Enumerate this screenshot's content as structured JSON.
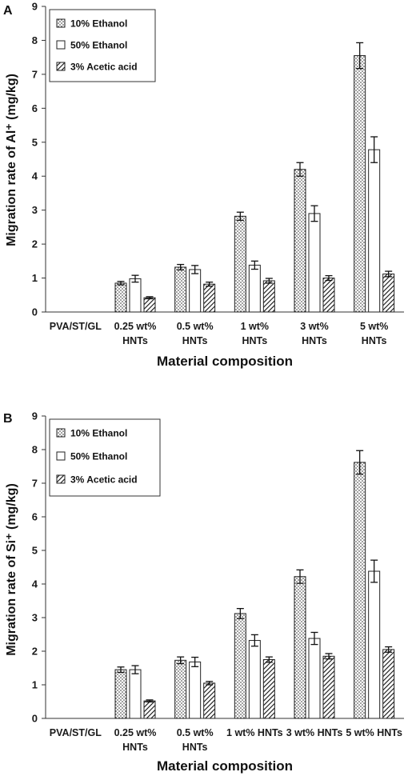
{
  "chart_data": [
    {
      "type": "bar",
      "panel_label": "A",
      "ylabel": "Migration rate of Al⁺ (mg/kg)",
      "xlabel": "Material composition",
      "ylim": [
        0,
        9
      ],
      "yticks": [
        "0",
        "1",
        "2",
        "3",
        "4",
        "5",
        "6",
        "7",
        "8",
        "9"
      ],
      "categories": [
        [
          "PVA/ST/GL"
        ],
        [
          "0.25 wt%",
          "HNTs"
        ],
        [
          "0.5 wt%",
          "HNTs"
        ],
        [
          "1 wt%",
          "HNTs"
        ],
        [
          "3 wt%",
          "HNTs"
        ],
        [
          "5 wt%",
          "HNTs"
        ]
      ],
      "series": [
        {
          "name": "10% Ethanol",
          "pattern": "dots",
          "values": [
            0,
            0.85,
            1.32,
            2.82,
            4.2,
            7.55
          ],
          "errors": [
            0,
            0.05,
            0.08,
            0.12,
            0.2,
            0.38
          ]
        },
        {
          "name": "50% Ethanol",
          "pattern": "white",
          "values": [
            0,
            0.98,
            1.25,
            1.38,
            2.9,
            4.78
          ],
          "errors": [
            0,
            0.1,
            0.12,
            0.12,
            0.23,
            0.38
          ]
        },
        {
          "name": "3% Acetic acid",
          "pattern": "hatch",
          "values": [
            0,
            0.42,
            0.82,
            0.92,
            1.0,
            1.12
          ],
          "errors": [
            0,
            0.03,
            0.06,
            0.07,
            0.07,
            0.08
          ]
        }
      ],
      "legend_position": "top-left",
      "grid": false
    },
    {
      "type": "bar",
      "panel_label": "B",
      "ylabel": "Migration rate of Si⁺ (mg/kg)",
      "xlabel": "Material composition",
      "ylim": [
        0,
        9
      ],
      "yticks": [
        "0",
        "1",
        "2",
        "3",
        "4",
        "5",
        "6",
        "7",
        "8",
        "9"
      ],
      "categories": [
        [
          "PVA/ST/GL"
        ],
        [
          "0.25 wt%",
          "HNTs"
        ],
        [
          "0.5 wt%",
          "HNTs"
        ],
        [
          "1 wt% HNTs"
        ],
        [
          "3 wt% HNTs"
        ],
        [
          "5 wt% HNTs"
        ]
      ],
      "series": [
        {
          "name": "10% Ethanol",
          "pattern": "dots",
          "values": [
            0,
            1.45,
            1.73,
            3.12,
            4.22,
            7.62
          ],
          "errors": [
            0,
            0.08,
            0.1,
            0.15,
            0.2,
            0.35
          ]
        },
        {
          "name": "50% Ethanol",
          "pattern": "white",
          "values": [
            0,
            1.45,
            1.68,
            2.32,
            2.38,
            4.38
          ],
          "errors": [
            0,
            0.12,
            0.14,
            0.17,
            0.18,
            0.33
          ]
        },
        {
          "name": "3% Acetic acid",
          "pattern": "hatch",
          "values": [
            0,
            0.52,
            1.05,
            1.75,
            1.85,
            2.05
          ],
          "errors": [
            0,
            0.03,
            0.05,
            0.08,
            0.08,
            0.08
          ]
        }
      ],
      "legend_position": "top-left",
      "grid": false
    }
  ]
}
